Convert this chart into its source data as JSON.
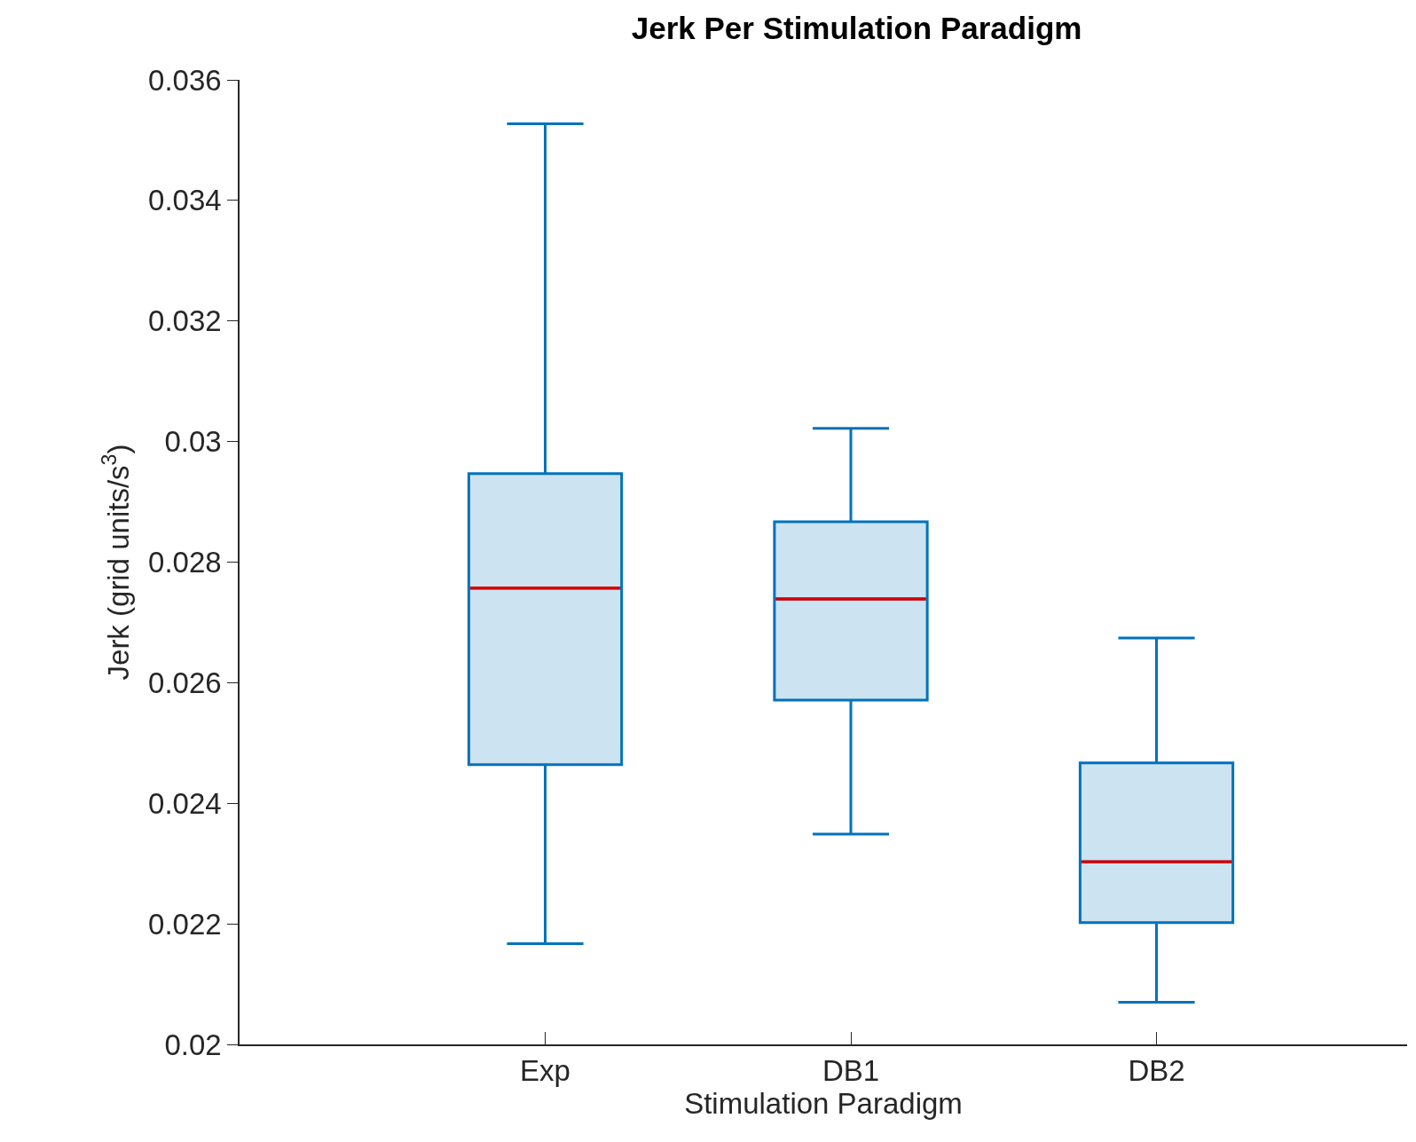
{
  "chart_data": {
    "type": "box",
    "title": "Jerk Per Stimulation Paradigm",
    "xlabel": "Stimulation Paradigm",
    "ylabel": "Jerk (grid units/s$^{3}$)",
    "categories": [
      "Exp",
      "DB1",
      "DB2"
    ],
    "ylim": [
      0.02,
      0.036
    ],
    "yticks": [
      0.02,
      0.022,
      0.024,
      0.026,
      0.028,
      0.03,
      0.032,
      0.034,
      0.036
    ],
    "series": [
      {
        "color": "#0072bd",
        "boxes": [
          {
            "low": 0.02167,
            "q1": 0.02464,
            "median": 0.02757,
            "q3": 0.02947,
            "high": 0.03527
          },
          {
            "low": 0.02349,
            "q1": 0.02571,
            "median": 0.02739,
            "q3": 0.02867,
            "high": 0.03022
          },
          {
            "low": 0.0207,
            "q1": 0.02202,
            "median": 0.02303,
            "q3": 0.02467,
            "high": 0.02674
          }
        ]
      }
    ]
  }
}
